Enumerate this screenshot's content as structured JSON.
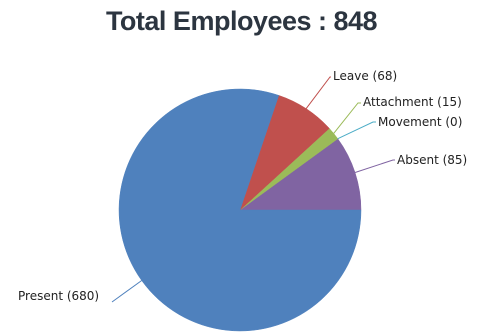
{
  "title": "Total Employees : 848",
  "chart_data": {
    "type": "pie",
    "title": "Total Employees : 848",
    "start_angle_deg": 0,
    "direction": "clockwise-from-right",
    "slices": [
      {
        "name": "Present",
        "value": 680,
        "label": "Present (680)",
        "color": "#4f81bd"
      },
      {
        "name": "Leave",
        "value": 68,
        "label": "Leave (68)",
        "color": "#c0504d"
      },
      {
        "name": "Attachment",
        "value": 15,
        "label": "Attachment (15)",
        "color": "#9bbb59"
      },
      {
        "name": "Movement",
        "value": 0,
        "label": "Movement (0)",
        "color": "#4bacc6"
      },
      {
        "name": "Absent",
        "value": 85,
        "label": "Absent (85)",
        "color": "#8064a2"
      }
    ]
  }
}
